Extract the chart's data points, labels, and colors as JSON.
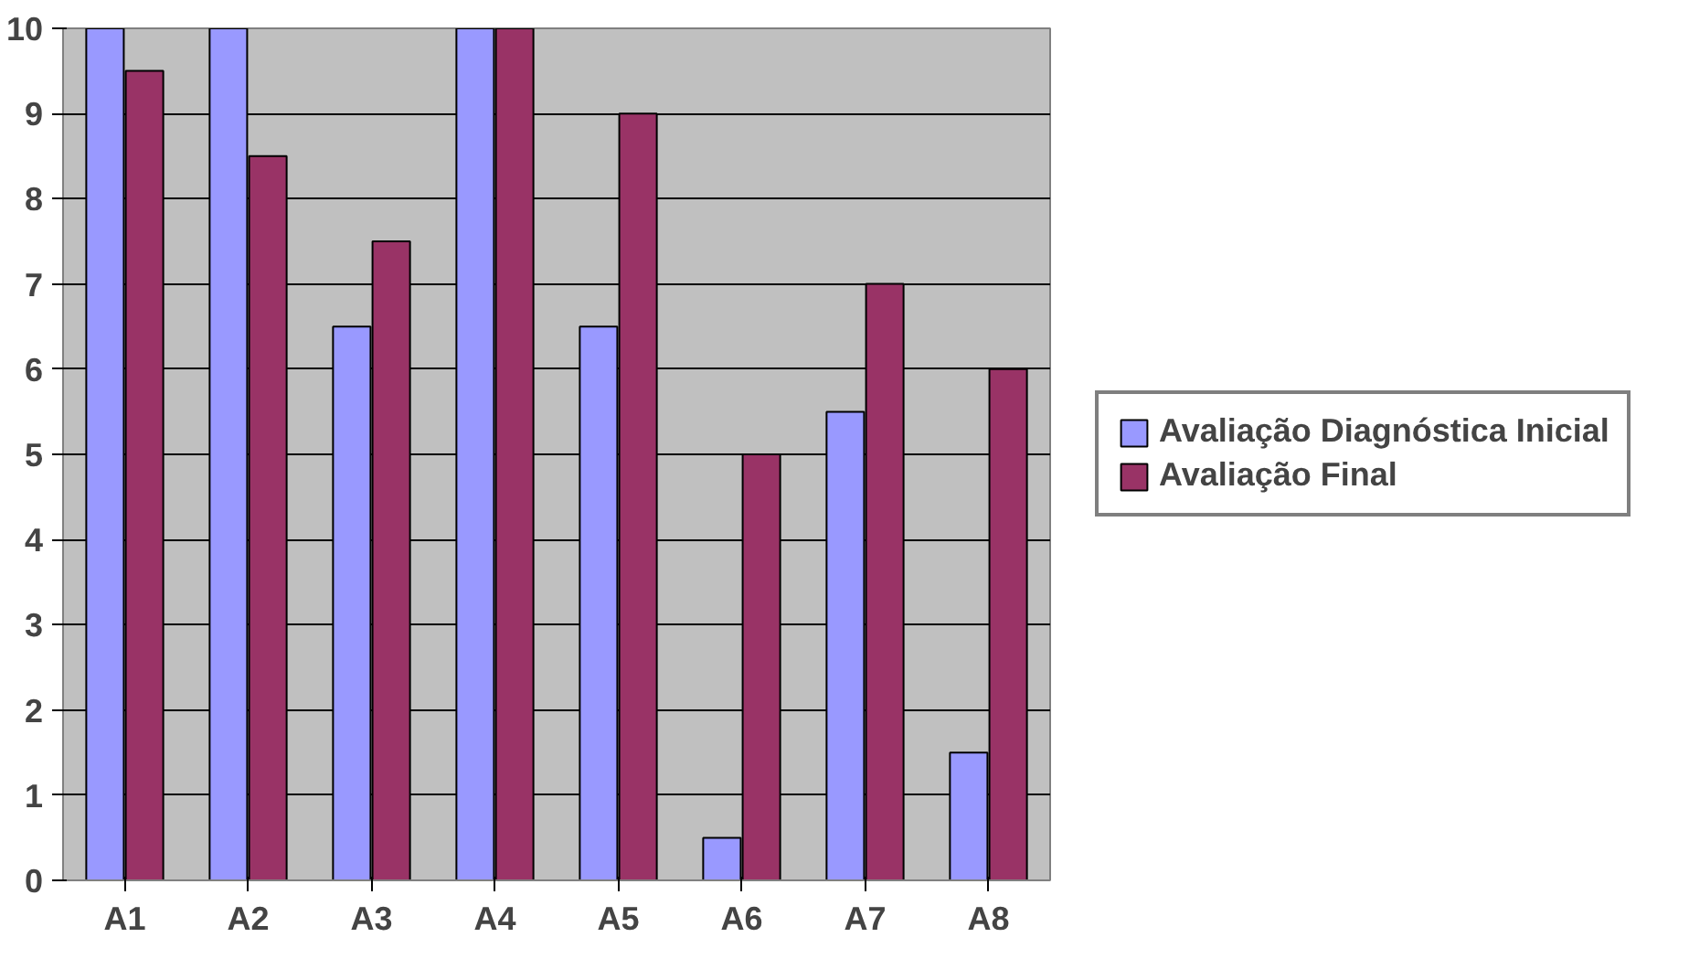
{
  "chart_data": {
    "type": "bar",
    "categories": [
      "A1",
      "A2",
      "A3",
      "A4",
      "A5",
      "A6",
      "A7",
      "A8"
    ],
    "series": [
      {
        "name": "Avaliação Diagnóstica Inicial",
        "color": "#9999ff",
        "values": [
          10,
          10,
          6.5,
          10,
          6.5,
          0.5,
          5.5,
          1.5
        ]
      },
      {
        "name": "Avaliação Final",
        "color": "#993366",
        "values": [
          9.5,
          8.5,
          7.5,
          10,
          9,
          5,
          7,
          6
        ]
      }
    ],
    "ylim": [
      0,
      10
    ],
    "yticks": [
      0,
      1,
      2,
      3,
      4,
      5,
      6,
      7,
      8,
      9,
      10
    ],
    "grid": "y",
    "legend": "right"
  }
}
